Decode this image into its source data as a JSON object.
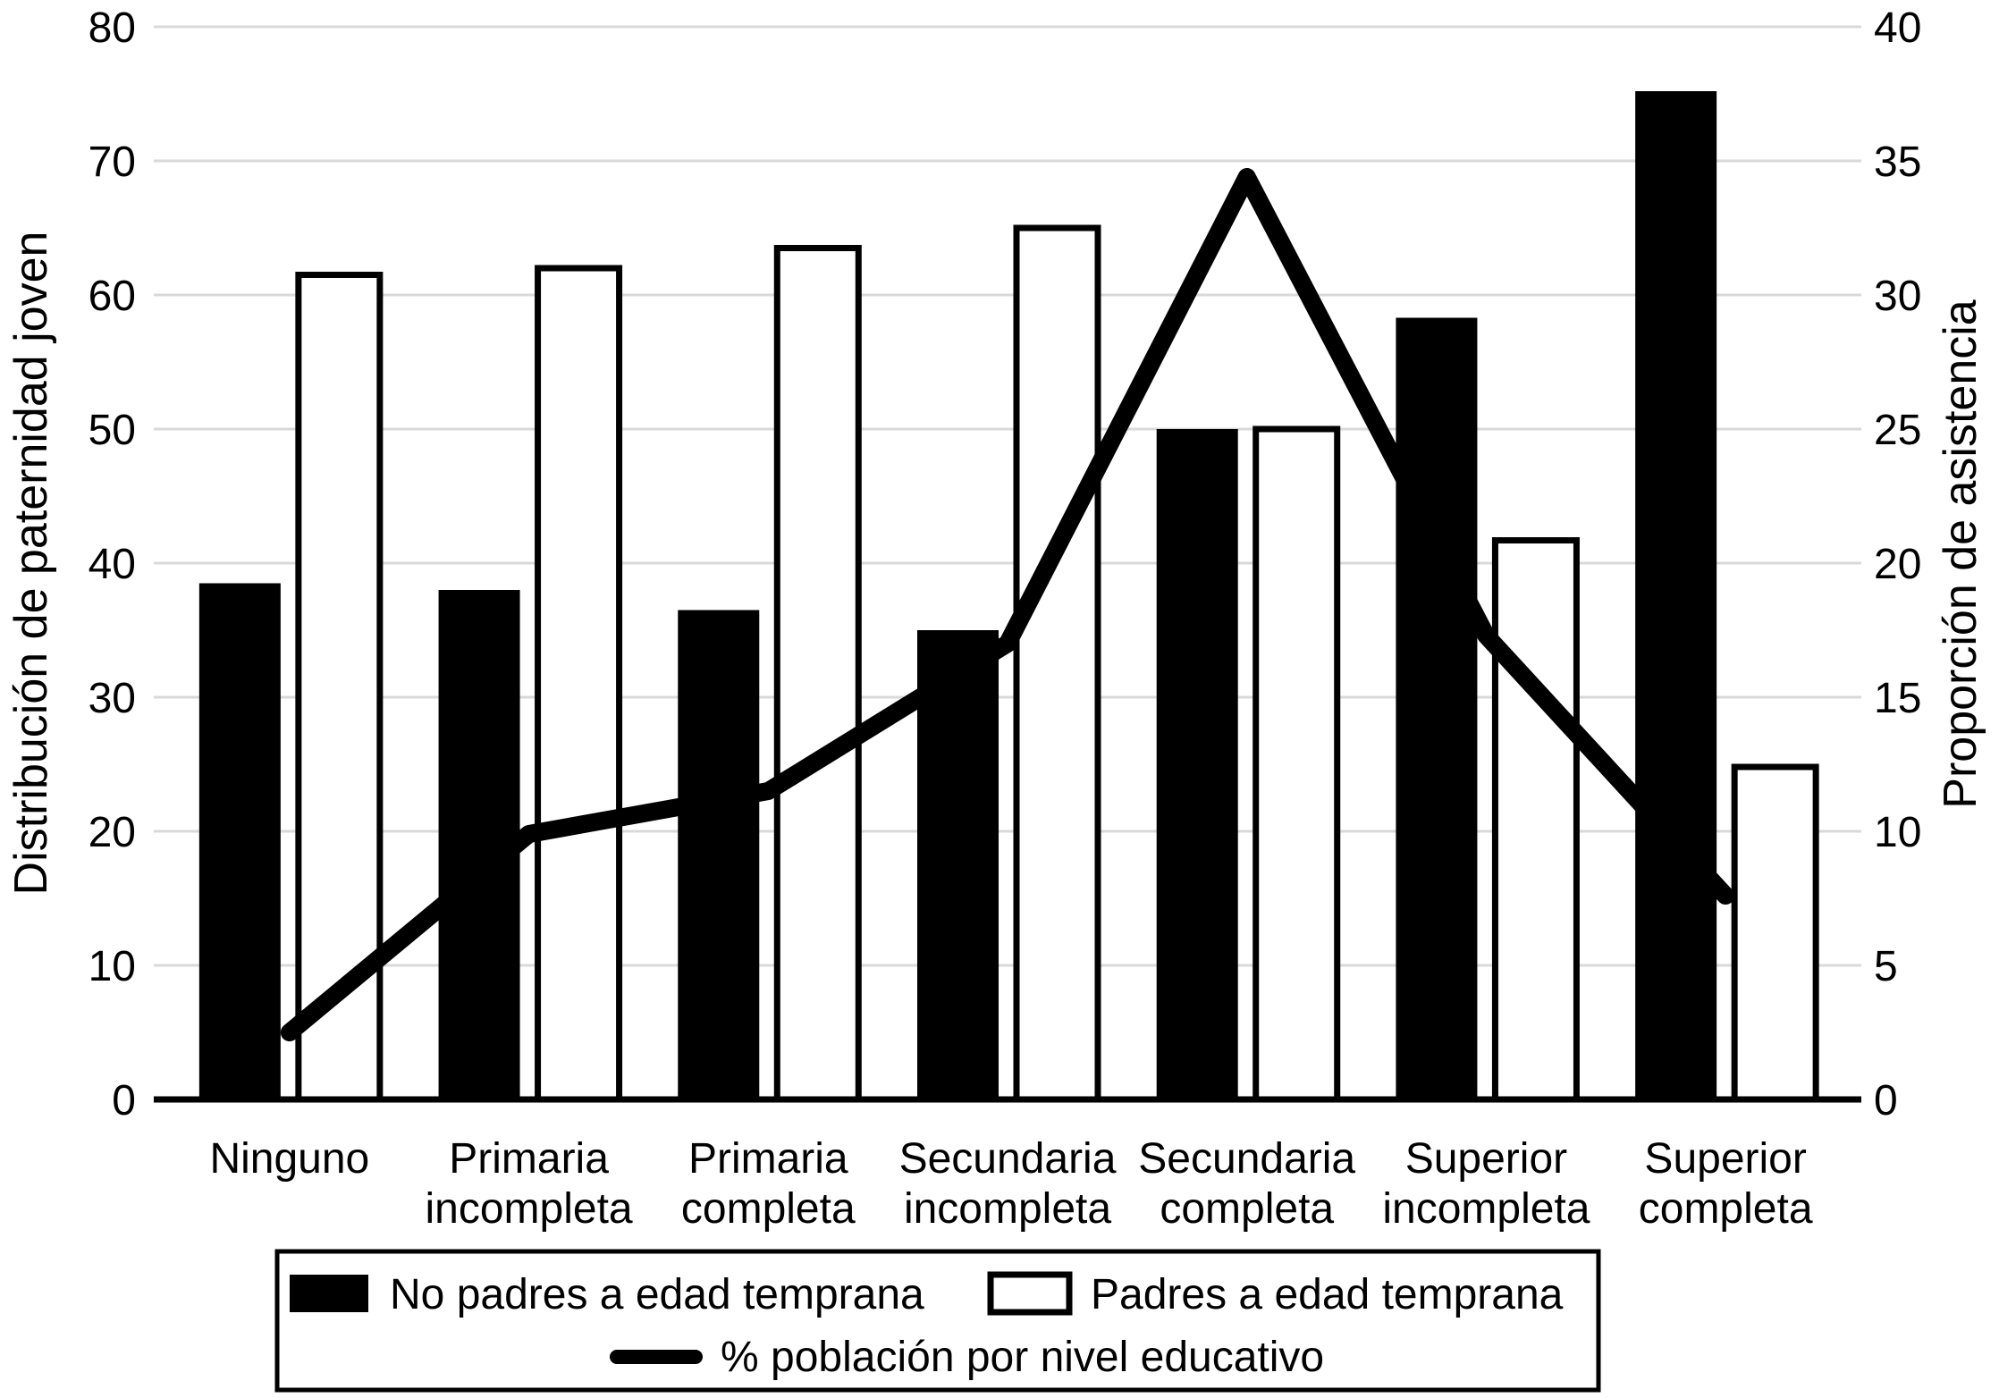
{
  "chart_data": {
    "type": "combo-bar-line",
    "title": "",
    "categories": [
      "Ninguno",
      "Primaria incompleta",
      "Primaria completa",
      "Secundaria incompleta",
      "Secundaria completa",
      "Superior incompleta",
      "Superior completa"
    ],
    "series": [
      {
        "name": "No padres a edad temprana",
        "type": "bar",
        "variant": "solid",
        "axis": "left",
        "values": [
          38.5,
          38,
          36.5,
          35,
          50,
          58.3,
          75.2
        ]
      },
      {
        "name": "Padres a edad temprana",
        "type": "bar",
        "variant": "outline",
        "axis": "left",
        "values": [
          61.5,
          62,
          63.5,
          65,
          50,
          41.7,
          24.8
        ]
      },
      {
        "name": "% población por nivel educativo",
        "type": "line",
        "axis": "right",
        "values": [
          2.5,
          9.9,
          11.5,
          17,
          34.4,
          17.3,
          7.6
        ]
      }
    ],
    "left_axis": {
      "title": "Distribución de paternidad joven",
      "min": 0,
      "max": 80,
      "step": 10,
      "tick_labels": [
        "0",
        "10",
        "20",
        "30",
        "40",
        "50",
        "60",
        "70",
        "80"
      ]
    },
    "right_axis": {
      "title": "Proporción de asistencia",
      "min": 0,
      "max": 40,
      "step": 5,
      "tick_labels": [
        "0",
        "5",
        "10",
        "15",
        "20",
        "25",
        "30",
        "35",
        "40"
      ]
    },
    "grid": true,
    "legend_position": "bottom-box",
    "colors": {
      "series_color": "#000000",
      "outline_bar_fill": "#ffffff",
      "gridline": "#d9d9d9",
      "background": "#ffffff"
    }
  }
}
